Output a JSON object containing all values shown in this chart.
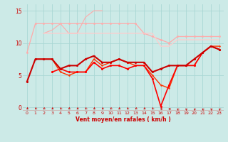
{
  "background_color": "#cceae7",
  "grid_color": "#aad8d5",
  "x_labels": [
    "0",
    "1",
    "2",
    "3",
    "4",
    "5",
    "6",
    "7",
    "8",
    "9",
    "10",
    "11",
    "12",
    "13",
    "14",
    "15",
    "16",
    "17",
    "18",
    "19",
    "20",
    "21",
    "22",
    "23"
  ],
  "xlabel": "Vent moyen/en rafales ( km/h )",
  "ylim": [
    -0.5,
    16
  ],
  "yticks": [
    0,
    5,
    10,
    15
  ],
  "lines": [
    {
      "y": [
        8.5,
        13,
        13,
        13,
        13,
        13,
        13,
        13,
        13,
        13,
        13,
        13,
        13,
        13,
        11.5,
        11,
        10.5,
        10,
        11,
        11,
        11,
        11,
        11,
        11
      ],
      "color": "#ffaaaa",
      "lw": 0.9,
      "marker": "o",
      "ms": 2.0,
      "zorder": 2
    },
    {
      "y": [
        null,
        null,
        11.5,
        12,
        13,
        11.5,
        11.5,
        14,
        15,
        15,
        null,
        null,
        null,
        null,
        null,
        null,
        null,
        null,
        null,
        null,
        null,
        null,
        null,
        null
      ],
      "color": "#ffaaaa",
      "lw": 0.8,
      "marker": null,
      "ms": 0,
      "zorder": 2
    },
    {
      "y": [
        null,
        null,
        11.5,
        11.5,
        11.5,
        11.5,
        11.5,
        11.5,
        11.5,
        11.5,
        11.5,
        11.5,
        11.5,
        11.5,
        11.5,
        11.5,
        9.5,
        9.5,
        10.5,
        10.5,
        10.5,
        10.5,
        10.5,
        10.5
      ],
      "color": "#ffcccc",
      "lw": 0.9,
      "marker": null,
      "ms": 0,
      "zorder": 2
    },
    {
      "y": [
        4,
        7.5,
        7.5,
        7.5,
        6,
        6.5,
        6.5,
        7.5,
        8,
        7,
        7,
        7.5,
        7,
        7,
        7,
        5.5,
        6,
        6.5,
        6.5,
        6.5,
        7.5,
        8.5,
        9.5,
        9
      ],
      "color": "#cc0000",
      "lw": 1.5,
      "marker": "o",
      "ms": 2.2,
      "zorder": 5
    },
    {
      "y": [
        null,
        7.5,
        7.5,
        7.5,
        5.5,
        5,
        5.5,
        5.5,
        7.5,
        6.5,
        7,
        7.5,
        7,
        6.5,
        6.5,
        5,
        3.5,
        3,
        6.5,
        6.5,
        6.5,
        8.5,
        9.5,
        9.5
      ],
      "color": "#ff3300",
      "lw": 1.0,
      "marker": "o",
      "ms": 1.8,
      "zorder": 4
    },
    {
      "y": [
        null,
        null,
        null,
        5.5,
        6,
        5.5,
        5.5,
        5.5,
        7,
        6,
        6.5,
        6.5,
        6,
        6.5,
        6.5,
        4.5,
        0.2,
        3.5,
        6.5,
        6.5,
        6.5,
        8.5,
        9.5,
        9
      ],
      "color": "#ff0000",
      "lw": 1.2,
      "marker": "o",
      "ms": 2.2,
      "zorder": 4
    }
  ],
  "wind_arrows": {
    "x_positions": [
      0,
      1,
      2,
      3,
      4,
      5,
      6,
      7,
      8,
      9,
      10,
      11,
      12,
      13,
      14,
      15,
      16,
      17,
      18,
      19,
      20,
      21,
      22,
      23
    ],
    "angles_deg": [
      225,
      225,
      225,
      225,
      225,
      225,
      225,
      225,
      225,
      225,
      225,
      225,
      225,
      225,
      225,
      225,
      270,
      270,
      315,
      315,
      315,
      315,
      315,
      315
    ]
  },
  "arrow_color": "#cc0000",
  "axis_line_color": "#cc0000",
  "tick_color": "#cc0000",
  "xlabel_color": "#cc0000",
  "ylabel_color": "#cc0000"
}
